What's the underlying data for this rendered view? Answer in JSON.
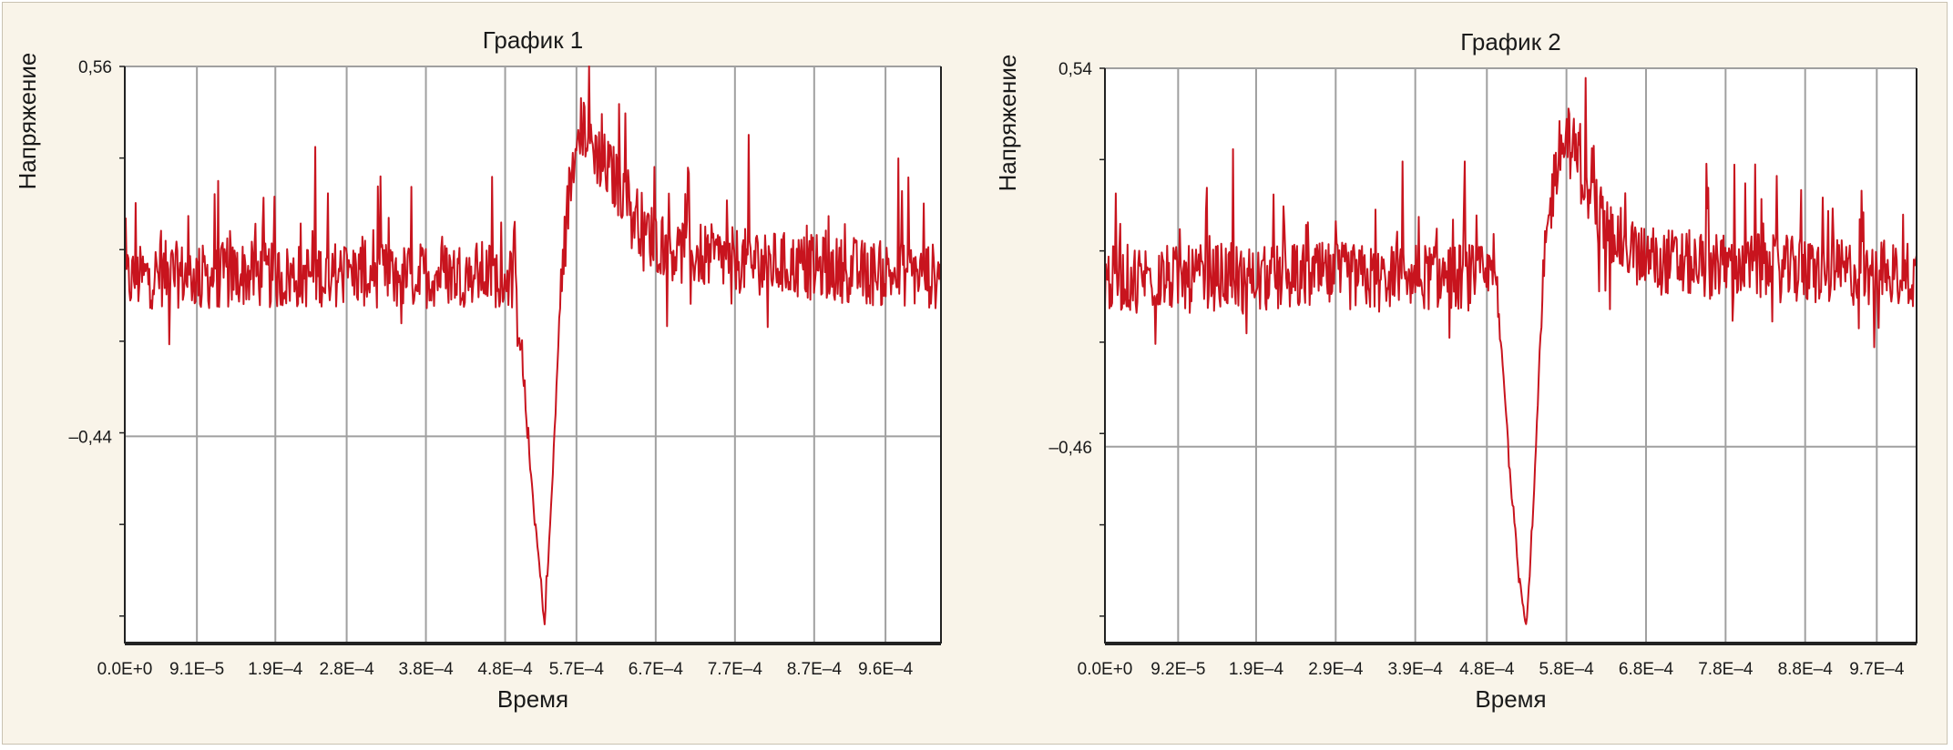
{
  "colors": {
    "background": "#f9f4e9",
    "plot_area": "#ffffff",
    "signal": "#c8141e",
    "grid": "#a0a0a0",
    "axis": "#222222"
  },
  "chart_data": [
    {
      "type": "line",
      "title": "График 1",
      "xlabel": "Время",
      "ylabel": "Напряжение",
      "xlim": [
        0,
        0.00103
      ],
      "ylim": [
        -1.0,
        0.56
      ],
      "ytick_labels": [
        "0,56",
        "–0,44"
      ],
      "ytick_values": [
        0.56,
        -0.44
      ],
      "xtick_labels": [
        "0.0E+0",
        "9.1E–5",
        "1.9E–4",
        "2.8E–4",
        "3.8E–4",
        "4.8E–4",
        "5.7E–4",
        "6.7E–4",
        "7.7E–4",
        "8.7E–4",
        "9.6E–4"
      ],
      "xtick_values": [
        0,
        9.1e-05,
        0.00019,
        0.00028,
        0.00038,
        0.00048,
        0.00057,
        0.00067,
        0.00077,
        0.00087,
        0.00096
      ],
      "grid": true,
      "series": [
        {
          "x": [
            0,
            5e-05,
            0.0001,
            0.00015,
            0.0002,
            0.00025,
            0.0003,
            0.00035,
            0.0004,
            0.00045,
            0.00049,
            0.0005,
            0.00051,
            0.00052,
            0.00053,
            0.00054,
            0.00055,
            0.00056,
            0.00057,
            0.00058,
            0.00059,
            0.0006,
            0.00061,
            0.00062,
            0.00063,
            0.00064,
            0.00065,
            0.00067,
            0.0007,
            0.00075,
            0.0008,
            0.00085,
            0.0009,
            0.00095,
            0.001,
            0.00103
          ],
          "y": [
            -0.02,
            0.0,
            -0.01,
            0.0,
            -0.01,
            0.0,
            0.0,
            -0.01,
            0.0,
            0.0,
            -0.01,
            -0.2,
            -0.48,
            -0.72,
            -0.95,
            -0.55,
            -0.05,
            0.2,
            0.38,
            0.4,
            0.35,
            0.31,
            0.28,
            0.25,
            0.22,
            0.18,
            0.14,
            0.09,
            0.06,
            0.04,
            0.03,
            0.02,
            0.01,
            0.0,
            0.0,
            -0.01
          ]
        }
      ]
    },
    {
      "type": "line",
      "title": "График 2",
      "xlabel": "Время",
      "ylabel": "Напряжение",
      "xlim": [
        0,
        0.00102
      ],
      "ylim": [
        -0.98,
        0.54
      ],
      "ytick_labels": [
        "0,54",
        "–0,46"
      ],
      "ytick_values": [
        0.54,
        -0.46
      ],
      "xtick_labels": [
        "0.0E+0",
        "9.2E–5",
        "1.9E–4",
        "2.9E–4",
        "3.9E–4",
        "4.8E–4",
        "5.8E–4",
        "6.8E–4",
        "7.8E–4",
        "8.8E–4",
        "9.7E–4"
      ],
      "xtick_values": [
        0,
        9.2e-05,
        0.00019,
        0.00029,
        0.00039,
        0.00048,
        0.00058,
        0.00068,
        0.00078,
        0.00088,
        0.00097
      ],
      "grid": true,
      "series": [
        {
          "x": [
            0,
            5e-05,
            0.0001,
            0.00015,
            0.0002,
            0.00025,
            0.0003,
            0.00035,
            0.0004,
            0.00045,
            0.00049,
            0.0005,
            0.00051,
            0.00052,
            0.00053,
            0.00054,
            0.00055,
            0.00056,
            0.00057,
            0.00058,
            0.00059,
            0.0006,
            0.00061,
            0.00062,
            0.00063,
            0.00064,
            0.00065,
            0.00067,
            0.0007,
            0.00075,
            0.0008,
            0.00085,
            0.0009,
            0.00095,
            0.001,
            0.00102
          ],
          "y": [
            -0.02,
            -0.01,
            -0.02,
            -0.01,
            -0.02,
            -0.01,
            -0.01,
            -0.02,
            -0.01,
            -0.01,
            -0.02,
            -0.25,
            -0.55,
            -0.8,
            -0.93,
            -0.55,
            -0.05,
            0.18,
            0.32,
            0.35,
            0.32,
            0.26,
            0.2,
            0.16,
            0.12,
            0.1,
            0.08,
            0.05,
            0.03,
            0.02,
            0.02,
            0.01,
            0.0,
            0.0,
            0.0,
            -0.01
          ]
        }
      ]
    }
  ]
}
